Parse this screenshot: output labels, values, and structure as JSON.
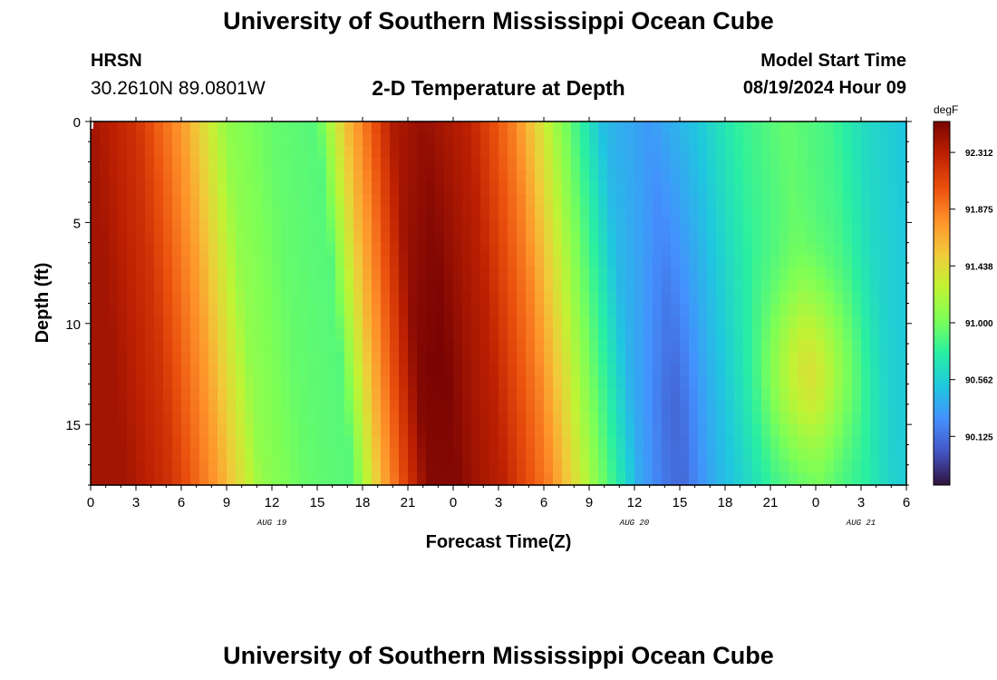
{
  "header": {
    "title": "University of Southern Mississippi Ocean Cube",
    "footer_title": "University of Southern Mississippi Ocean Cube",
    "station": "HRSN",
    "coords": "30.2610N  89.0801W",
    "subtitle": "2-D Temperature at Depth",
    "model_start_label": "Model Start Time",
    "model_start_value": "08/19/2024 Hour 09"
  },
  "colorbar": {
    "units": "degF",
    "labels": [
      "92.312",
      "91.875",
      "91.438",
      "91.000",
      "90.562",
      "90.125"
    ],
    "label_values": [
      92.312,
      91.875,
      91.438,
      91.0,
      90.562,
      90.125
    ],
    "range": [
      89.75,
      92.55
    ],
    "colors": [
      "#30123b",
      "#4454c4",
      "#4490fe",
      "#1fc8de",
      "#29efa2",
      "#7dff56",
      "#c1f334",
      "#f1ca3a",
      "#fe922a",
      "#ea4f0d",
      "#be2102",
      "#7a0403"
    ]
  },
  "chart_data": {
    "type": "heatmap",
    "title": "2-D Temperature at Depth",
    "xlabel": "Forecast Time(Z)",
    "ylabel": "Depth (ft)",
    "x_tick_labels": [
      "0",
      "3",
      "6",
      "9",
      "12",
      "15",
      "18",
      "21",
      "0",
      "3",
      "6",
      "9",
      "12",
      "15",
      "18",
      "21",
      "0",
      "3",
      "6"
    ],
    "x_range_hours": [
      0,
      54
    ],
    "date_labels": [
      "AUG 19",
      "AUG 20",
      "AUG 21"
    ],
    "date_label_hours": [
      12,
      36,
      51
    ],
    "y_tick_labels": [
      "0",
      "5",
      "10",
      "15"
    ],
    "y_tick_values": [
      0,
      5,
      10,
      15
    ],
    "ylim": [
      0,
      18
    ],
    "value_units": "degF",
    "approx_surface_temperature_by_hour": {
      "hours": [
        0,
        3,
        6,
        9,
        12,
        15,
        17,
        20,
        22,
        25,
        28,
        31,
        34,
        37,
        40,
        43,
        46,
        49,
        51,
        54
      ],
      "values": [
        92.4,
        92.2,
        91.75,
        91.1,
        90.95,
        90.9,
        91.6,
        92.35,
        92.45,
        92.3,
        91.85,
        91.1,
        90.45,
        90.3,
        90.5,
        90.8,
        90.95,
        90.85,
        90.65,
        90.5
      ]
    }
  }
}
